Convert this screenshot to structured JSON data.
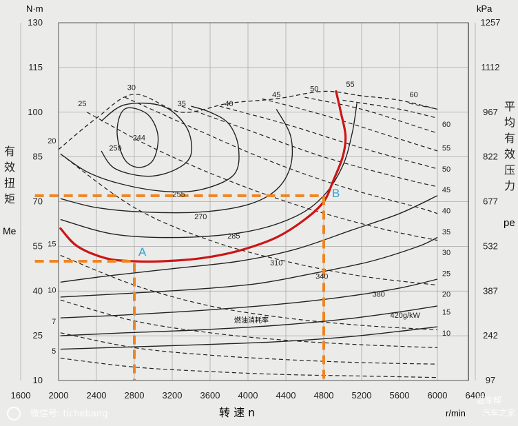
{
  "chart_data": {
    "type": "line",
    "title": "",
    "xlabel": "转 速 n",
    "x_unit": "r/min",
    "ylabel_left": "有效扭矩",
    "ylabel_left_symbol": "Me",
    "y_left_unit": "N·m",
    "ylabel_right": "平均有效压力",
    "ylabel_right_symbol": "pe",
    "y_right_unit": "kPa",
    "x_ticks": [
      1600,
      2000,
      2400,
      2800,
      3200,
      3600,
      4000,
      4400,
      4800,
      5200,
      5600,
      6000,
      6400
    ],
    "y_left_ticks": [
      10,
      25,
      40,
      55,
      70,
      85,
      100,
      115,
      130
    ],
    "y_right_ticks": [
      97,
      242,
      387,
      532,
      677,
      822,
      967,
      1112,
      1257
    ],
    "xlim": [
      1600,
      6400
    ],
    "ylim": [
      10,
      130
    ],
    "grid": true,
    "annotation_center": "燃油消耗率",
    "fuel_consumption_contours": [
      {
        "label": "244",
        "points": [
          [
            2750,
            101.5
          ],
          [
            2950,
            99
          ],
          [
            3050,
            92
          ],
          [
            3000,
            84
          ],
          [
            2850,
            81.5
          ],
          [
            2700,
            84
          ],
          [
            2620,
            92
          ],
          [
            2650,
            99
          ]
        ]
      },
      {
        "label": "250",
        "points": [
          [
            2450,
            97
          ],
          [
            2700,
            102.5
          ],
          [
            3100,
            102
          ],
          [
            3350,
            95
          ],
          [
            3400,
            86
          ],
          [
            3250,
            81
          ],
          [
            2950,
            78.5
          ],
          [
            2600,
            81
          ],
          [
            2450,
            87
          ]
        ]
      },
      {
        "label": "255",
        "points": [
          [
            2020,
            86
          ],
          [
            2300,
            80
          ],
          [
            2650,
            76
          ],
          [
            3100,
            73.5
          ],
          [
            3500,
            74
          ],
          [
            3850,
            79
          ],
          [
            3900,
            88
          ],
          [
            3800,
            96
          ],
          [
            3600,
            100
          ],
          [
            3400,
            102
          ]
        ]
      },
      {
        "label": "270",
        "points": [
          [
            2020,
            71
          ],
          [
            2400,
            68
          ],
          [
            2900,
            66.5
          ],
          [
            3500,
            66.5
          ],
          [
            4000,
            69
          ],
          [
            4300,
            74
          ],
          [
            4450,
            82
          ],
          [
            4450,
            92
          ],
          [
            4300,
            101
          ]
        ]
      },
      {
        "label": "285",
        "points": [
          [
            2020,
            64
          ],
          [
            2600,
            59
          ],
          [
            3300,
            58
          ],
          [
            4000,
            60
          ],
          [
            4500,
            65
          ],
          [
            4800,
            72
          ],
          [
            5000,
            82
          ],
          [
            5100,
            93
          ],
          [
            5150,
            103
          ]
        ]
      },
      {
        "label": "310",
        "points": [
          [
            2020,
            43
          ],
          [
            2500,
            45
          ],
          [
            3200,
            47.5
          ],
          [
            3900,
            50
          ],
          [
            4500,
            54
          ],
          [
            5100,
            60.5
          ],
          [
            5600,
            66
          ],
          [
            6000,
            72
          ]
        ]
      },
      {
        "label": "340",
        "points": [
          [
            2020,
            38
          ],
          [
            2600,
            39
          ],
          [
            3400,
            40.5
          ],
          [
            4100,
            42.5
          ],
          [
            4700,
            46
          ],
          [
            5300,
            50
          ],
          [
            5800,
            55
          ],
          [
            6000,
            58
          ]
        ]
      },
      {
        "label": "380",
        "points": [
          [
            2020,
            31
          ],
          [
            2700,
            32
          ],
          [
            3500,
            33.5
          ],
          [
            4300,
            35.5
          ],
          [
            5000,
            38
          ],
          [
            5600,
            41
          ],
          [
            6000,
            44
          ]
        ]
      },
      {
        "label": "420g/kW",
        "points": [
          [
            2020,
            25
          ],
          [
            2700,
            26
          ],
          [
            3500,
            27
          ],
          [
            4300,
            28.5
          ],
          [
            5000,
            30.5
          ],
          [
            5600,
            33
          ],
          [
            6000,
            35
          ]
        ]
      },
      {
        "label": "",
        "points": [
          [
            2020,
            20.5
          ],
          [
            2700,
            21.2
          ],
          [
            3500,
            22
          ],
          [
            4300,
            23
          ],
          [
            5000,
            24.5
          ],
          [
            5600,
            26.5
          ],
          [
            6000,
            28
          ]
        ]
      }
    ],
    "power_lines": [
      {
        "label": "5",
        "points": [
          [
            2020,
            17.5
          ],
          [
            2800,
            14.5
          ],
          [
            3600,
            13
          ],
          [
            4400,
            12
          ],
          [
            5200,
            11.5
          ],
          [
            6000,
            11
          ]
        ]
      },
      {
        "label": "7",
        "points": [
          [
            2020,
            26
          ],
          [
            2800,
            21
          ],
          [
            3600,
            18.5
          ],
          [
            4400,
            17
          ],
          [
            5200,
            16
          ],
          [
            6000,
            15.5
          ]
        ]
      },
      {
        "label": "10",
        "points": [
          [
            2020,
            37
          ],
          [
            2800,
            30
          ],
          [
            3600,
            26
          ],
          [
            4400,
            23.5
          ],
          [
            5200,
            22
          ],
          [
            6000,
            21
          ]
        ]
      },
      {
        "label": "15",
        "points": [
          [
            2020,
            52
          ],
          [
            2800,
            42
          ],
          [
            3600,
            35
          ],
          [
            4400,
            31
          ],
          [
            5200,
            28.5
          ],
          [
            6000,
            27
          ]
        ]
      },
      {
        "label": "20",
        "points": [
          [
            2020,
            86
          ],
          [
            2800,
            68
          ],
          [
            3600,
            57
          ],
          [
            4400,
            50
          ],
          [
            5200,
            45
          ],
          [
            6000,
            42
          ]
        ]
      },
      {
        "label": "25",
        "points": [
          [
            2300,
            100
          ],
          [
            3000,
            88
          ],
          [
            3800,
            77
          ],
          [
            4600,
            68
          ],
          [
            5400,
            61
          ],
          [
            6000,
            57
          ]
        ]
      },
      {
        "label": "30",
        "points": [
          [
            2700,
            105
          ],
          [
            3400,
            95
          ],
          [
            4200,
            84
          ],
          [
            5000,
            75
          ],
          [
            5800,
            68
          ],
          [
            6000,
            66
          ]
        ]
      },
      {
        "label": "35",
        "points": [
          [
            3300,
            102
          ],
          [
            4000,
            94
          ],
          [
            4800,
            85
          ],
          [
            5600,
            78
          ],
          [
            6000,
            75
          ]
        ]
      },
      {
        "label": "40",
        "points": [
          [
            3700,
            102
          ],
          [
            4400,
            96
          ],
          [
            5200,
            88
          ],
          [
            6000,
            81
          ]
        ]
      },
      {
        "label": "45",
        "points": [
          [
            4150,
            104.5
          ],
          [
            4800,
            99
          ],
          [
            5500,
            92
          ],
          [
            6000,
            87
          ]
        ]
      },
      {
        "label": "50",
        "points": [
          [
            4600,
            105
          ],
          [
            5200,
            101
          ],
          [
            5800,
            95
          ],
          [
            6000,
            93
          ]
        ]
      },
      {
        "label": "55",
        "points": [
          [
            5000,
            104
          ],
          [
            5600,
            101
          ],
          [
            6000,
            98
          ]
        ]
      },
      {
        "label": "60",
        "points": [
          [
            5700,
            103
          ],
          [
            6000,
            101
          ]
        ]
      }
    ],
    "right_edge_labels": [
      "60",
      "55",
      "50",
      "45",
      "40",
      "35",
      "30",
      "25",
      "20",
      "15",
      "10"
    ],
    "full_load_boundary": [
      [
        2000,
        87.5
      ],
      [
        2400,
        98
      ],
      [
        2800,
        106
      ],
      [
        3300,
        100
      ],
      [
        3800,
        103
      ],
      [
        4300,
        104.5
      ],
      [
        4800,
        107
      ],
      [
        5200,
        105.5
      ],
      [
        5600,
        104
      ],
      [
        6000,
        101
      ]
    ],
    "highlight_curve": [
      [
        2020,
        61
      ],
      [
        2200,
        55
      ],
      [
        2500,
        51
      ],
      [
        2800,
        50
      ],
      [
        3100,
        50
      ],
      [
        3500,
        51
      ],
      [
        3900,
        53.5
      ],
      [
        4300,
        58
      ],
      [
        4600,
        64
      ],
      [
        4800,
        70
      ],
      [
        4900,
        77
      ],
      [
        5000,
        85
      ],
      [
        5030,
        92
      ],
      [
        4980,
        100
      ],
      [
        4930,
        107
      ]
    ],
    "point_A": {
      "label": "A",
      "x": 2800,
      "y": 50
    },
    "point_B": {
      "label": "B",
      "x": 4800,
      "y": 72
    },
    "colors": {
      "highlight": "#cc1515",
      "guide": "#ee8422",
      "marker_label": "#2aa3d6",
      "grid": "#aaaaaa",
      "ink": "#222222"
    }
  },
  "watermarks": {
    "left": "微信号: tichebang",
    "right_top": "题车帮",
    "right_bottom": "汽车之家"
  }
}
